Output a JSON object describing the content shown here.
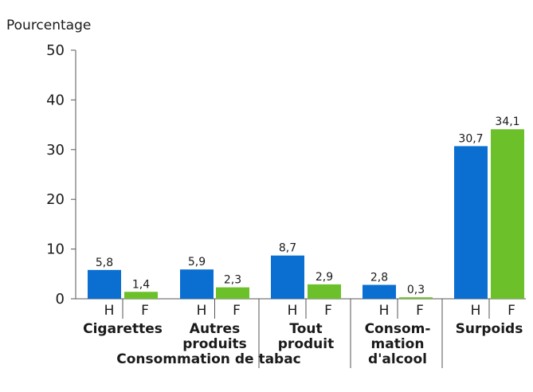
{
  "chart_data": {
    "type": "bar",
    "ylabel": "Pourcentage",
    "ylim": [
      0,
      50
    ],
    "yticks": [
      "0",
      "10",
      "20",
      "30",
      "40",
      "50"
    ],
    "sub_categories": [
      "H",
      "F"
    ],
    "categories": [
      {
        "label": [
          "Cigarettes"
        ],
        "values": [
          5.8,
          1.4
        ],
        "value_labels": [
          "5,8",
          "1,4"
        ]
      },
      {
        "label": [
          "Autres",
          "produits"
        ],
        "values": [
          5.9,
          2.3
        ],
        "value_labels": [
          "5,9",
          "2,3"
        ]
      },
      {
        "label": [
          "Tout",
          "produit"
        ],
        "values": [
          8.7,
          2.9
        ],
        "value_labels": [
          "8,7",
          "2,9"
        ]
      },
      {
        "label": [
          "Consom-",
          "mation",
          "d'alcool"
        ],
        "values": [
          2.8,
          0.3
        ],
        "value_labels": [
          "2,8",
          "0,3"
        ]
      },
      {
        "label": [
          "Surpoids"
        ],
        "values": [
          30.7,
          34.1
        ],
        "value_labels": [
          "30,7",
          "34,1"
        ]
      }
    ],
    "group_label": "Consommation de tabac",
    "colors": {
      "H": "#0a6fd1",
      "F": "#6cc02a",
      "axis": "#555555"
    }
  }
}
